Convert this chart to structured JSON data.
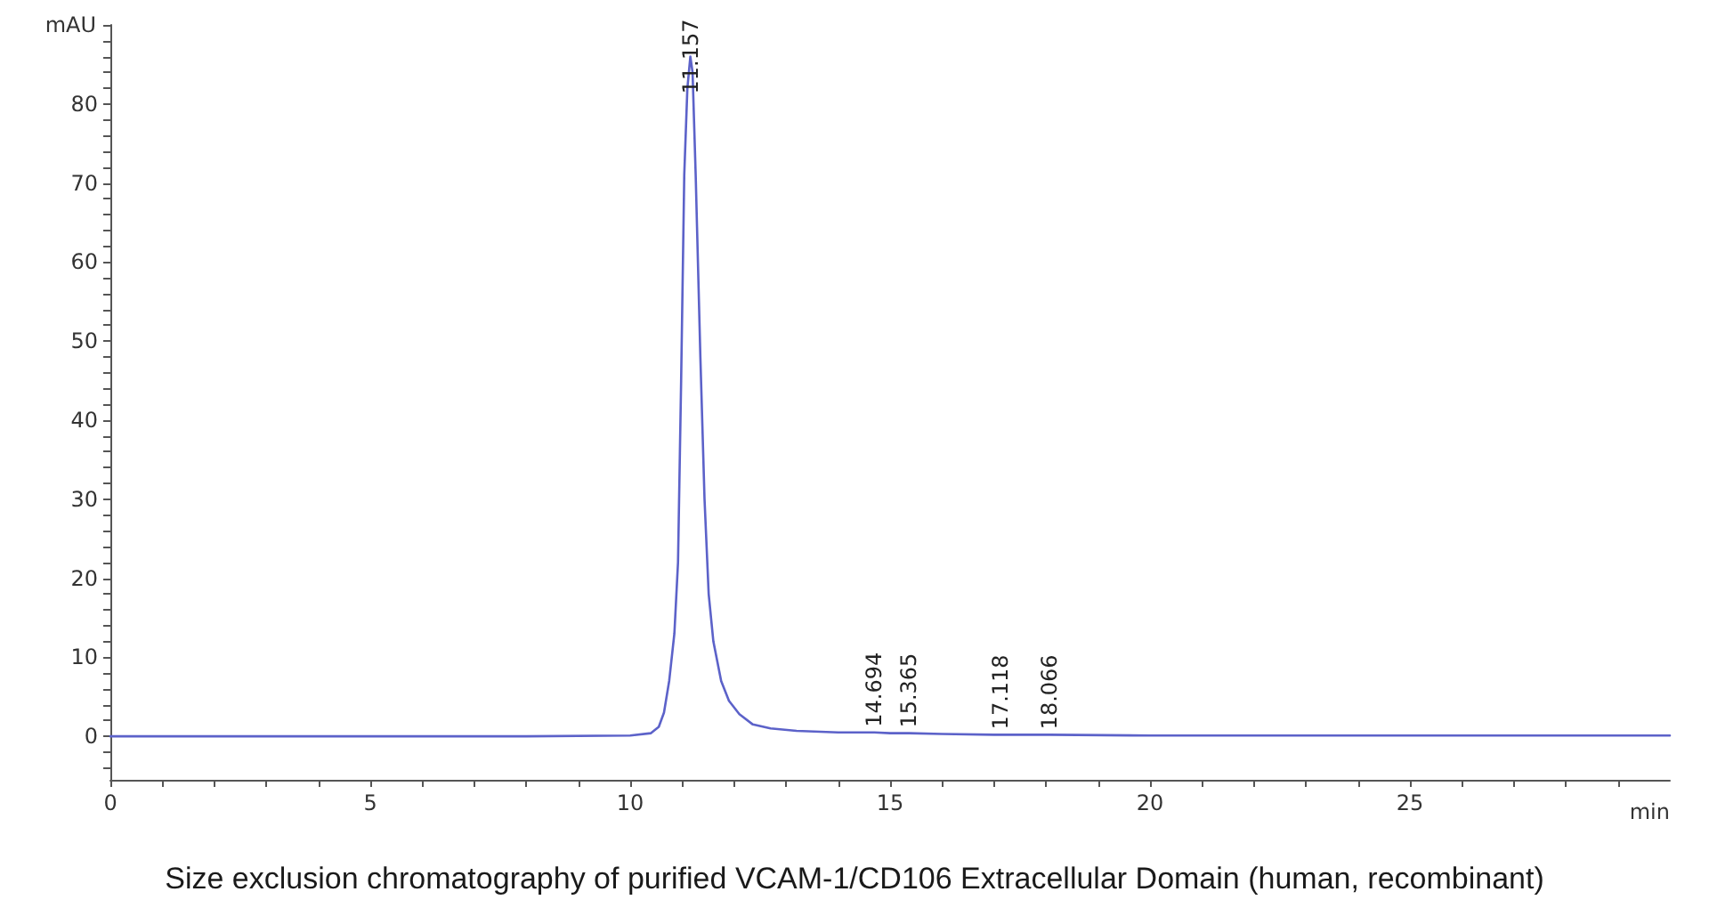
{
  "chart_data": {
    "type": "line",
    "ylabel": "mAU",
    "xlabel": "min",
    "annotations": [
      {
        "text": "11.157",
        "x": 11.157,
        "y": 86
      },
      {
        "text": "14.694",
        "x": 14.694,
        "y": 0.5
      },
      {
        "text": "15.365",
        "x": 15.365,
        "y": 0.4
      },
      {
        "text": "17.118",
        "x": 17.118,
        "y": 0.2
      },
      {
        "text": "18.066",
        "x": 18.066,
        "y": 0.2
      },
      "Size exclusion chromatography of purified VCAM-1/CD106 Extracellular Domain (human, recombinant)"
    ],
    "series": [
      {
        "color": "#5c62c9",
        "x": [
          0,
          2,
          4,
          6,
          8,
          10,
          10.4,
          10.55,
          10.65,
          10.75,
          10.85,
          10.92,
          10.98,
          11.04,
          11.1,
          11.157,
          11.2,
          11.26,
          11.35,
          11.43,
          11.51,
          11.6,
          11.75,
          11.9,
          12.1,
          12.36,
          12.7,
          13.2,
          14,
          14.694,
          15,
          15.365,
          16,
          17,
          17.118,
          18,
          18.066,
          20,
          25,
          30
        ],
        "values": [
          0,
          0,
          0,
          0,
          0,
          0.1,
          0.4,
          1.2,
          3,
          7,
          13,
          22,
          45,
          71,
          82,
          86,
          84,
          71,
          48,
          30,
          18,
          12,
          7,
          4.5,
          2.8,
          1.5,
          1,
          0.7,
          0.5,
          0.5,
          0.4,
          0.4,
          0.3,
          0.2,
          0.2,
          0.2,
          0.2,
          0.1,
          0.1,
          0.1
        ]
      }
    ],
    "xlim": [
      0,
      30
    ],
    "xticks": [
      0,
      {
        "value": 1,
        "label": null
      },
      {
        "value": 2,
        "label": null
      },
      {
        "value": 3,
        "label": null
      },
      {
        "value": 4,
        "label": null
      },
      5,
      {
        "value": 6,
        "label": null
      },
      {
        "value": 7,
        "label": null
      },
      {
        "value": 8,
        "label": null
      },
      {
        "value": 9,
        "label": null
      },
      10,
      {
        "value": 11,
        "label": null
      },
      {
        "value": 12,
        "label": null
      },
      {
        "value": 13,
        "label": null
      },
      {
        "value": 14,
        "label": null
      },
      15,
      {
        "value": 16,
        "label": null
      },
      {
        "value": 17,
        "label": null
      },
      {
        "value": 18,
        "label": null
      },
      {
        "value": 19,
        "label": null
      },
      20,
      {
        "value": 21,
        "label": null
      },
      {
        "value": 22,
        "label": null
      },
      {
        "value": 23,
        "label": null
      },
      {
        "value": 24,
        "label": null
      },
      25,
      {
        "value": 26,
        "label": null
      },
      {
        "value": 27,
        "label": null
      },
      {
        "value": 28,
        "label": null
      },
      {
        "value": 29,
        "label": null
      }
    ],
    "ylim": [
      -5.5,
      90
    ],
    "yticks": [
      {
        "value": -4,
        "label": null
      },
      {
        "value": -2,
        "label": null
      },
      0,
      {
        "value": 2,
        "label": null
      },
      {
        "value": 4,
        "label": null
      },
      {
        "value": 6,
        "label": null
      },
      {
        "value": 8,
        "label": null
      },
      10,
      {
        "value": 12,
        "label": null
      },
      {
        "value": 14,
        "label": null
      },
      {
        "value": 16,
        "label": null
      },
      {
        "value": 18,
        "label": null
      },
      20,
      {
        "value": 22,
        "label": null
      },
      {
        "value": 24,
        "label": null
      },
      {
        "value": 26,
        "label": null
      },
      {
        "value": 28,
        "label": null
      },
      30,
      {
        "value": 32,
        "label": null
      },
      {
        "value": 34,
        "label": null
      },
      {
        "value": 36,
        "label": null
      },
      {
        "value": 38,
        "label": null
      },
      40,
      {
        "value": 42,
        "label": null
      },
      {
        "value": 44,
        "label": null
      },
      {
        "value": 46,
        "label": null
      },
      {
        "value": 48,
        "label": null
      },
      50,
      {
        "value": 52,
        "label": null
      },
      {
        "value": 54,
        "label": null
      },
      {
        "value": 56,
        "label": null
      },
      {
        "value": 58,
        "label": null
      },
      60,
      {
        "value": 62,
        "label": null
      },
      {
        "value": 64,
        "label": null
      },
      {
        "value": 66,
        "label": null
      },
      {
        "value": 68,
        "label": null
      },
      70,
      {
        "value": 72,
        "label": null
      },
      {
        "value": 74,
        "label": null
      },
      {
        "value": 76,
        "label": null
      },
      {
        "value": 78,
        "label": null
      },
      80,
      {
        "value": 82,
        "label": null
      },
      {
        "value": 84,
        "label": null
      },
      {
        "value": 86,
        "label": null
      },
      {
        "value": 88,
        "label": null
      },
      {
        "value": 90,
        "label": null
      }
    ],
    "grid": false,
    "marker": "none",
    "line_style": "solid"
  }
}
